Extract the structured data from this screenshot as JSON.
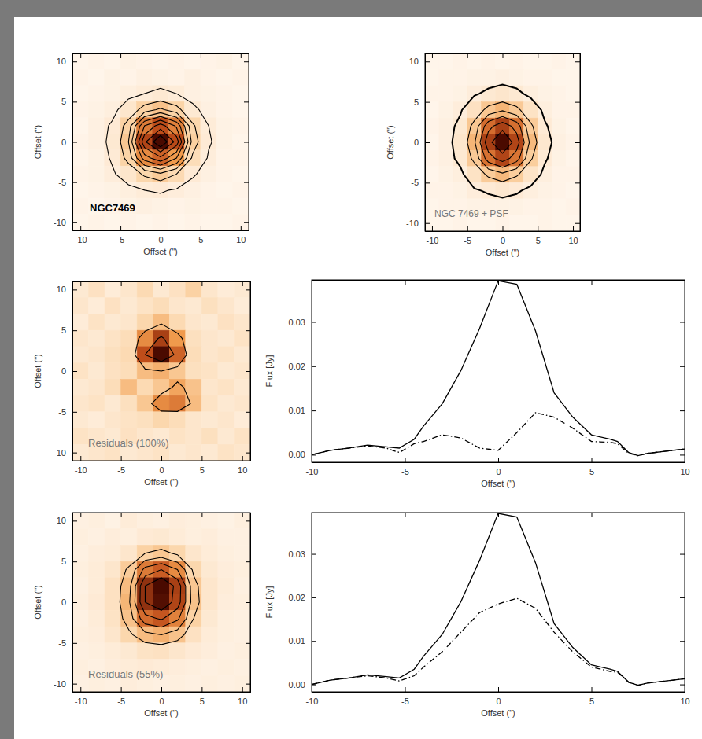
{
  "chart_data": [
    {
      "type": "heatmap",
      "annotation": "NGC7469",
      "xlabel": "Offset (\")",
      "ylabel": "Offset (\")",
      "xlim": [
        -11,
        11
      ],
      "ylim": [
        -11,
        11
      ],
      "xticks": [
        -10,
        -5,
        0,
        5,
        10
      ],
      "yticks": [
        -10,
        -5,
        0,
        5,
        10
      ],
      "x": [
        -10,
        -8,
        -6,
        -4,
        -2,
        0,
        2,
        4,
        6,
        8,
        10
      ],
      "y": [
        10,
        8,
        6,
        4,
        2,
        0,
        -2,
        -4,
        -6,
        -8,
        -10
      ],
      "zlim": [
        0,
        100
      ],
      "contour_levels": [
        8,
        20,
        30,
        40,
        50,
        60,
        70,
        80,
        90
      ],
      "cells": [
        [
          2,
          3,
          2,
          4,
          3,
          2,
          3,
          2,
          3,
          4,
          2
        ],
        [
          3,
          2,
          4,
          3,
          5,
          4,
          3,
          5,
          3,
          2,
          3
        ],
        [
          2,
          3,
          4,
          6,
          8,
          10,
          8,
          5,
          4,
          3,
          2
        ],
        [
          3,
          4,
          6,
          12,
          25,
          32,
          24,
          10,
          5,
          3,
          2
        ],
        [
          2,
          5,
          9,
          25,
          60,
          75,
          58,
          22,
          8,
          4,
          3
        ],
        [
          3,
          5,
          10,
          30,
          78,
          100,
          76,
          26,
          9,
          4,
          2
        ],
        [
          2,
          4,
          9,
          24,
          55,
          68,
          50,
          18,
          7,
          3,
          3
        ],
        [
          3,
          4,
          7,
          12,
          22,
          28,
          20,
          9,
          5,
          3,
          2
        ],
        [
          2,
          3,
          4,
          6,
          8,
          9,
          7,
          5,
          3,
          2,
          3
        ],
        [
          3,
          2,
          3,
          4,
          5,
          4,
          3,
          4,
          3,
          3,
          2
        ],
        [
          2,
          3,
          2,
          3,
          2,
          3,
          2,
          3,
          2,
          2,
          3
        ]
      ]
    },
    {
      "type": "heatmap",
      "annotation": "NGC 7469 + PSF",
      "xlabel": "Offset (\")",
      "ylabel": "Offset (\")",
      "xlim": [
        -11,
        11
      ],
      "ylim": [
        -11,
        11
      ],
      "xticks": [
        -10,
        -5,
        0,
        5,
        10
      ],
      "yticks": [
        -10,
        -5,
        0,
        5,
        10
      ],
      "x": [
        -10,
        -8,
        -6,
        -4,
        -2,
        0,
        2,
        4,
        6,
        8,
        10
      ],
      "y": [
        10,
        8,
        6,
        4,
        2,
        0,
        -2,
        -4,
        -6,
        -8,
        -10
      ],
      "zlim": [
        0,
        100
      ],
      "contour_levels": [
        8,
        25,
        40,
        55,
        70,
        85
      ],
      "cells": [
        [
          2,
          2,
          3,
          2,
          3,
          2,
          3,
          2,
          2,
          3,
          2
        ],
        [
          2,
          3,
          3,
          4,
          4,
          5,
          4,
          3,
          3,
          2,
          2
        ],
        [
          3,
          3,
          4,
          7,
          10,
          12,
          10,
          6,
          4,
          3,
          2
        ],
        [
          2,
          4,
          7,
          15,
          30,
          38,
          29,
          14,
          6,
          3,
          3
        ],
        [
          3,
          5,
          10,
          30,
          65,
          80,
          64,
          28,
          9,
          4,
          2
        ],
        [
          2,
          5,
          12,
          38,
          80,
          100,
          78,
          36,
          11,
          5,
          3
        ],
        [
          3,
          5,
          10,
          29,
          63,
          78,
          62,
          27,
          9,
          4,
          2
        ],
        [
          2,
          4,
          6,
          14,
          28,
          36,
          27,
          13,
          6,
          3,
          3
        ],
        [
          3,
          3,
          4,
          7,
          9,
          11,
          9,
          6,
          4,
          3,
          2
        ],
        [
          2,
          3,
          3,
          4,
          4,
          4,
          4,
          3,
          3,
          2,
          3
        ],
        [
          2,
          2,
          3,
          2,
          2,
          3,
          2,
          2,
          3,
          2,
          2
        ]
      ]
    },
    {
      "type": "heatmap",
      "annotation": "Residuals (100%)",
      "xlabel": "Offset (\")",
      "ylabel": "Offset (\")",
      "xlim": [
        -11,
        11
      ],
      "ylim": [
        -11,
        11
      ],
      "xticks": [
        -10,
        -5,
        0,
        5,
        10
      ],
      "yticks": [
        -10,
        -5,
        0,
        5,
        10
      ],
      "x": [
        -10,
        -8,
        -6,
        -4,
        -2,
        0,
        2,
        4,
        6,
        8,
        10
      ],
      "y": [
        10,
        8,
        6,
        4,
        2,
        0,
        -2,
        -4,
        -6,
        -8,
        -10
      ],
      "zlim": [
        0,
        100
      ],
      "contour_levels": [
        40,
        75
      ],
      "cells": [
        [
          10,
          15,
          8,
          12,
          20,
          10,
          15,
          25,
          12,
          8,
          10
        ],
        [
          12,
          8,
          15,
          10,
          14,
          18,
          12,
          10,
          16,
          12,
          8
        ],
        [
          8,
          14,
          10,
          12,
          22,
          35,
          20,
          12,
          10,
          15,
          12
        ],
        [
          12,
          10,
          14,
          18,
          55,
          80,
          50,
          16,
          12,
          10,
          14
        ],
        [
          10,
          12,
          16,
          20,
          75,
          100,
          68,
          18,
          12,
          14,
          10
        ],
        [
          14,
          10,
          15,
          18,
          35,
          40,
          30,
          16,
          14,
          10,
          12
        ],
        [
          10,
          12,
          18,
          35,
          20,
          30,
          45,
          32,
          12,
          14,
          10
        ],
        [
          12,
          14,
          10,
          16,
          30,
          55,
          60,
          35,
          14,
          10,
          12
        ],
        [
          10,
          8,
          12,
          14,
          16,
          22,
          18,
          12,
          10,
          12,
          8
        ],
        [
          14,
          12,
          10,
          15,
          12,
          10,
          14,
          12,
          16,
          10,
          14
        ],
        [
          10,
          12,
          14,
          10,
          12,
          14,
          10,
          12,
          10,
          14,
          12
        ]
      ]
    },
    {
      "type": "line",
      "xlabel": "Offset (\")",
      "ylabel": "Flux [Jy]",
      "xlim": [
        -10,
        10
      ],
      "ylim": [
        -0.0017,
        0.0395
      ],
      "xticks": [
        -10,
        -5,
        0,
        5,
        10
      ],
      "yticks": [
        {
          "value": 0,
          "label": "0.00"
        },
        {
          "value": 0.01,
          "label": "0.01"
        },
        {
          "value": 0.02,
          "label": "0.02"
        },
        {
          "value": 0.03,
          "label": "0.03"
        }
      ],
      "x": [
        -10,
        -9,
        -8,
        -7,
        -6,
        -5.3,
        -4.5,
        -4,
        -3,
        -2,
        -1,
        0,
        1,
        2,
        3,
        4,
        5,
        6,
        6.4,
        7,
        7.5,
        8,
        9,
        10
      ],
      "series": [
        {
          "color": "#000000",
          "line_style": "solid",
          "values": [
            0.0,
            0.001,
            0.0015,
            0.0022,
            0.0018,
            0.0015,
            0.0035,
            0.0065,
            0.0115,
            0.019,
            0.0285,
            0.0393,
            0.0385,
            0.028,
            0.014,
            0.0085,
            0.0045,
            0.0035,
            0.003,
            0.0005,
            -0.0002,
            0.0003,
            0.0008,
            0.0013
          ]
        },
        {
          "color": "#000000",
          "line_style": "dashdot",
          "values": [
            0.0,
            0.001,
            0.0015,
            0.002,
            0.0015,
            0.0005,
            0.0025,
            0.003,
            0.0045,
            0.0038,
            0.0015,
            0.001,
            0.005,
            0.0095,
            0.0085,
            0.006,
            0.003,
            0.0028,
            0.0025,
            0.0003,
            -0.0002,
            0.0003,
            0.0008,
            0.0013
          ]
        }
      ]
    },
    {
      "type": "heatmap",
      "annotation": "Residuals (55%)",
      "xlabel": "Offset (\")",
      "ylabel": "Offset (\")",
      "xlim": [
        -11,
        11
      ],
      "ylim": [
        -11,
        11
      ],
      "xticks": [
        -10,
        -5,
        0,
        5,
        10
      ],
      "yticks": [
        -10,
        -5,
        0,
        5,
        10
      ],
      "x": [
        -10,
        -8,
        -6,
        -4,
        -2,
        0,
        2,
        4,
        6,
        8,
        10
      ],
      "y": [
        10,
        8,
        6,
        4,
        2,
        0,
        -2,
        -4,
        -6,
        -8,
        -10
      ],
      "zlim": [
        0,
        100
      ],
      "contour_levels": [
        25,
        40,
        55,
        70,
        85
      ],
      "cells": [
        [
          5,
          6,
          4,
          8,
          6,
          5,
          7,
          6,
          5,
          4,
          6
        ],
        [
          6,
          5,
          7,
          6,
          9,
          10,
          8,
          6,
          7,
          5,
          5
        ],
        [
          5,
          7,
          8,
          12,
          25,
          30,
          22,
          12,
          8,
          6,
          5
        ],
        [
          6,
          8,
          12,
          28,
          60,
          70,
          55,
          22,
          10,
          7,
          6
        ],
        [
          5,
          8,
          15,
          35,
          85,
          100,
          80,
          30,
          12,
          8,
          5
        ],
        [
          6,
          9,
          15,
          38,
          85,
          98,
          78,
          32,
          12,
          7,
          6
        ],
        [
          5,
          8,
          14,
          32,
          65,
          72,
          58,
          25,
          10,
          6,
          5
        ],
        [
          6,
          7,
          12,
          22,
          35,
          40,
          32,
          15,
          8,
          6,
          5
        ],
        [
          5,
          6,
          8,
          10,
          14,
          15,
          12,
          9,
          7,
          5,
          6
        ],
        [
          6,
          5,
          7,
          8,
          9,
          8,
          7,
          6,
          5,
          6,
          5
        ],
        [
          5,
          6,
          5,
          7,
          6,
          5,
          6,
          5,
          6,
          5,
          6
        ]
      ]
    },
    {
      "type": "line",
      "xlabel": "Offset (\")",
      "ylabel": "Flux [Jy]",
      "xlim": [
        -10,
        10
      ],
      "ylim": [
        -0.0017,
        0.0395
      ],
      "xticks": [
        -10,
        -5,
        0,
        5,
        10
      ],
      "yticks": [
        {
          "value": 0,
          "label": "0.00"
        },
        {
          "value": 0.01,
          "label": "0.01"
        },
        {
          "value": 0.02,
          "label": "0.02"
        },
        {
          "value": 0.03,
          "label": "0.03"
        }
      ],
      "x": [
        -10,
        -9,
        -8,
        -7,
        -6,
        -5.3,
        -4.5,
        -4,
        -3,
        -2,
        -1,
        0,
        1,
        2,
        3,
        4,
        5,
        6,
        6.4,
        7,
        7.5,
        8,
        9,
        10
      ],
      "series": [
        {
          "color": "#000000",
          "line_style": "solid",
          "values": [
            0.0,
            0.001,
            0.0015,
            0.0022,
            0.0018,
            0.0015,
            0.0035,
            0.0065,
            0.0115,
            0.019,
            0.0285,
            0.0393,
            0.0385,
            0.028,
            0.014,
            0.0085,
            0.0045,
            0.0035,
            0.003,
            0.0005,
            -0.0002,
            0.0003,
            0.0008,
            0.0013
          ]
        },
        {
          "color": "#000000",
          "line_style": "dashdot",
          "values": [
            0.0,
            0.001,
            0.0015,
            0.002,
            0.0015,
            0.0008,
            0.002,
            0.004,
            0.0075,
            0.012,
            0.0165,
            0.0185,
            0.0198,
            0.0175,
            0.012,
            0.0075,
            0.004,
            0.003,
            0.0028,
            0.0005,
            -0.0002,
            0.0003,
            0.0008,
            0.0013
          ]
        }
      ]
    }
  ]
}
